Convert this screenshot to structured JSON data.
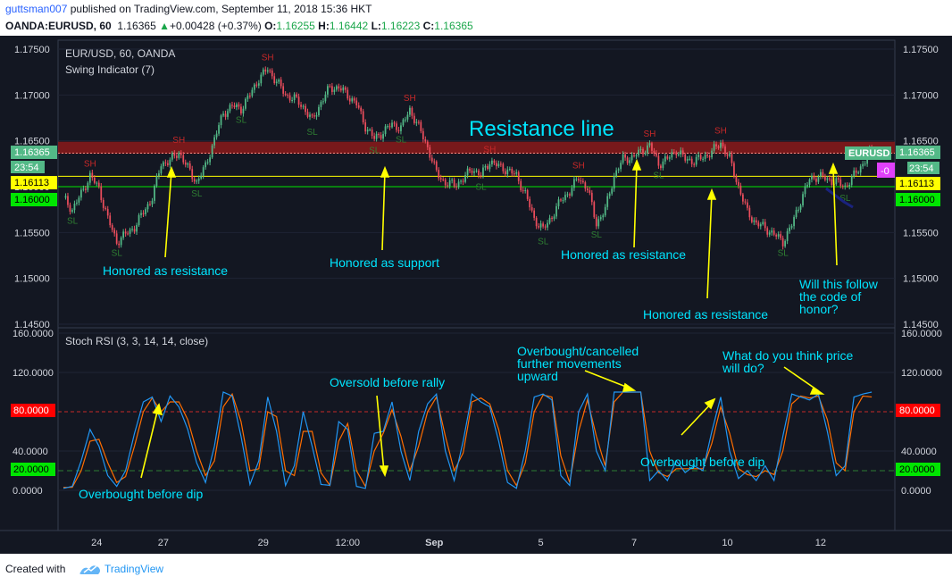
{
  "header": {
    "author": "guttsman007",
    "published_text": " published on TradingView.com, September 11, 2018 15:36 HKT",
    "symbol": "OANDA:EURUSD, 60",
    "last": "1.16365",
    "change_arrow": "▲",
    "change": "+0.00428 (+0.37%)",
    "o_label": "O:",
    "o_value": "1.16255",
    "h_label": "H:",
    "h_value": "1.16442",
    "l_label": "L:",
    "l_value": "1.16223",
    "c_label": "C:",
    "c_value": "1.16365"
  },
  "footer": {
    "created_with": "Created with",
    "brand": "TradingView"
  },
  "colors": {
    "bg": "#131722",
    "up": "#53b987",
    "down": "#eb4d5c",
    "resistance": "#8b1a1a",
    "annotation": "#00e5ff",
    "arrow": "#ffff00",
    "k_line": "#2196f3",
    "d_line": "#ff6d00"
  },
  "chart_data": [
    {
      "type": "candlestick",
      "title": "EUR/USD, 60, OANDA",
      "indicator": "Swing Indicator (7)",
      "y_ticks": [
        "1.17500",
        "1.17000",
        "1.16500",
        "1.16000",
        "1.15500",
        "1.15000",
        "1.14500"
      ],
      "ylim": [
        1.1443,
        1.1768
      ],
      "x_ticks": [
        "24",
        "27",
        "29",
        "12:00",
        "Sep",
        "5",
        "7",
        "10",
        "12"
      ],
      "price_labels": {
        "last": "1.16365",
        "countdown": "23:54",
        "support_yellow": "1.16113",
        "support_green": "1.16000",
        "symbol_badge": "EURUSD",
        "small_badge": "-0"
      },
      "resistance_zone": [
        1.1636,
        1.1649
      ],
      "horizontal_lines": [
        1.16113,
        1.16
      ],
      "close_path": [
        [
          0,
          1.1588
        ],
        [
          4,
          1.1575
        ],
        [
          8,
          1.1592
        ],
        [
          12,
          1.1612
        ],
        [
          16,
          1.1598
        ],
        [
          20,
          1.1565
        ],
        [
          24,
          1.154
        ],
        [
          28,
          1.1548
        ],
        [
          32,
          1.1556
        ],
        [
          36,
          1.1572
        ],
        [
          40,
          1.1588
        ],
        [
          44,
          1.1625
        ],
        [
          48,
          1.1628
        ],
        [
          52,
          1.1638
        ],
        [
          56,
          1.162
        ],
        [
          60,
          1.1605
        ],
        [
          64,
          1.1622
        ],
        [
          68,
          1.1652
        ],
        [
          72,
          1.168
        ],
        [
          76,
          1.1688
        ],
        [
          80,
          1.1685
        ],
        [
          84,
          1.17
        ],
        [
          88,
          1.1718
        ],
        [
          92,
          1.1728
        ],
        [
          96,
          1.1715
        ],
        [
          100,
          1.17
        ],
        [
          104,
          1.1696
        ],
        [
          108,
          1.1687
        ],
        [
          112,
          1.1672
        ],
        [
          116,
          1.1692
        ],
        [
          120,
          1.1708
        ],
        [
          124,
          1.1708
        ],
        [
          128,
          1.17
        ],
        [
          132,
          1.169
        ],
        [
          136,
          1.1666
        ],
        [
          140,
          1.1652
        ],
        [
          144,
          1.166
        ],
        [
          148,
          1.1668
        ],
        [
          152,
          1.1664
        ],
        [
          156,
          1.1684
        ],
        [
          160,
          1.1665
        ],
        [
          164,
          1.1643
        ],
        [
          168,
          1.1615
        ],
        [
          172,
          1.1604
        ],
        [
          176,
          1.1602
        ],
        [
          180,
          1.1608
        ],
        [
          184,
          1.162
        ],
        [
          188,
          1.1612
        ],
        [
          192,
          1.1628
        ],
        [
          196,
          1.1622
        ],
        [
          200,
          1.1618
        ],
        [
          204,
          1.1612
        ],
        [
          208,
          1.1592
        ],
        [
          212,
          1.1565
        ],
        [
          216,
          1.1553
        ],
        [
          220,
          1.1568
        ],
        [
          224,
          1.1585
        ],
        [
          228,
          1.1595
        ],
        [
          232,
          1.161
        ],
        [
          236,
          1.1598
        ],
        [
          240,
          1.156
        ],
        [
          244,
          1.1575
        ],
        [
          248,
          1.1612
        ],
        [
          252,
          1.163
        ],
        [
          256,
          1.1632
        ],
        [
          260,
          1.1638
        ],
        [
          264,
          1.1645
        ],
        [
          268,
          1.1625
        ],
        [
          272,
          1.163
        ],
        [
          276,
          1.164
        ],
        [
          280,
          1.163
        ],
        [
          284,
          1.1628
        ],
        [
          288,
          1.1632
        ],
        [
          292,
          1.1638
        ],
        [
          296,
          1.1648
        ],
        [
          300,
          1.163
        ],
        [
          304,
          1.16
        ],
        [
          308,
          1.1572
        ],
        [
          312,
          1.156
        ],
        [
          316,
          1.1555
        ],
        [
          320,
          1.1548
        ],
        [
          324,
          1.154
        ],
        [
          328,
          1.1558
        ],
        [
          332,
          1.1585
        ],
        [
          336,
          1.1608
        ],
        [
          340,
          1.1612
        ],
        [
          344,
          1.1608
        ],
        [
          348,
          1.1605
        ],
        [
          352,
          1.16
        ],
        [
          356,
          1.1612
        ],
        [
          360,
          1.1625
        ],
        [
          364,
          1.164
        ]
      ]
    },
    {
      "type": "line",
      "title": "Stoch RSI (3, 3, 14, 14, close)",
      "y_ticks": [
        "160.0000",
        "120.0000",
        "80.0000",
        "40.0000",
        "20.0000",
        "0.0000"
      ],
      "ylim": [
        -35,
        162
      ],
      "levels": {
        "upper": "80.0000",
        "lower": "20.0000"
      },
      "series": [
        {
          "values": [
            [
              0,
              2
            ],
            [
              4,
              4
            ],
            [
              8,
              30
            ],
            [
              12,
              62
            ],
            [
              16,
              45
            ],
            [
              20,
              15
            ],
            [
              24,
              4
            ],
            [
              28,
              20
            ],
            [
              32,
              58
            ],
            [
              36,
              90
            ],
            [
              40,
              95
            ],
            [
              44,
              70
            ],
            [
              48,
              96
            ],
            [
              52,
              85
            ],
            [
              56,
              62
            ],
            [
              60,
              28
            ],
            [
              64,
              8
            ],
            [
              68,
              45
            ],
            [
              72,
              100
            ],
            [
              76,
              96
            ],
            [
              80,
              55
            ],
            [
              84,
              6
            ],
            [
              88,
              30
            ],
            [
              92,
              95
            ],
            [
              96,
              60
            ],
            [
              100,
              5
            ],
            [
              104,
              25
            ],
            [
              108,
              80
            ],
            [
              112,
              45
            ],
            [
              116,
              6
            ],
            [
              120,
              5
            ],
            [
              124,
              70
            ],
            [
              128,
              62
            ],
            [
              132,
              4
            ],
            [
              136,
              2
            ],
            [
              140,
              58
            ],
            [
              144,
              60
            ],
            [
              148,
              90
            ],
            [
              152,
              40
            ],
            [
              156,
              10
            ],
            [
              160,
              60
            ],
            [
              164,
              88
            ],
            [
              168,
              98
            ],
            [
              172,
              40
            ],
            [
              176,
              10
            ],
            [
              180,
              50
            ],
            [
              184,
              98
            ],
            [
              188,
              90
            ],
            [
              192,
              85
            ],
            [
              196,
              50
            ],
            [
              200,
              8
            ],
            [
              204,
              2
            ],
            [
              208,
              40
            ],
            [
              212,
              95
            ],
            [
              216,
              98
            ],
            [
              220,
              92
            ],
            [
              224,
              15
            ],
            [
              228,
              5
            ],
            [
              232,
              80
            ],
            [
              236,
              98
            ],
            [
              240,
              40
            ],
            [
              244,
              20
            ],
            [
              248,
              100
            ],
            [
              252,
              100
            ],
            [
              256,
              100
            ],
            [
              260,
              100
            ],
            [
              264,
              10
            ],
            [
              268,
              20
            ],
            [
              272,
              10
            ],
            [
              276,
              30
            ],
            [
              280,
              18
            ],
            [
              284,
              25
            ],
            [
              288,
              20
            ],
            [
              292,
              60
            ],
            [
              296,
              95
            ],
            [
              300,
              40
            ],
            [
              304,
              12
            ],
            [
              308,
              20
            ],
            [
              312,
              10
            ],
            [
              316,
              25
            ],
            [
              320,
              10
            ],
            [
              324,
              55
            ],
            [
              328,
              98
            ],
            [
              332,
              95
            ],
            [
              336,
              92
            ],
            [
              340,
              98
            ],
            [
              344,
              60
            ],
            [
              348,
              15
            ],
            [
              352,
              25
            ],
            [
              356,
              95
            ],
            [
              360,
              98
            ],
            [
              364,
              100
            ]
          ]
        },
        {
          "values": [
            [
              0,
              3
            ],
            [
              4,
              3
            ],
            [
              8,
              20
            ],
            [
              12,
              50
            ],
            [
              16,
              52
            ],
            [
              20,
              28
            ],
            [
              24,
              8
            ],
            [
              28,
              14
            ],
            [
              32,
              45
            ],
            [
              36,
              80
            ],
            [
              40,
              94
            ],
            [
              44,
              80
            ],
            [
              48,
              90
            ],
            [
              52,
              90
            ],
            [
              56,
              72
            ],
            [
              60,
              40
            ],
            [
              64,
              15
            ],
            [
              68,
              30
            ],
            [
              72,
              85
            ],
            [
              76,
              98
            ],
            [
              80,
              70
            ],
            [
              84,
              20
            ],
            [
              88,
              22
            ],
            [
              92,
              80
            ],
            [
              96,
              75
            ],
            [
              100,
              20
            ],
            [
              104,
              15
            ],
            [
              108,
              60
            ],
            [
              112,
              60
            ],
            [
              116,
              18
            ],
            [
              120,
              5
            ],
            [
              124,
              50
            ],
            [
              128,
              68
            ],
            [
              132,
              20
            ],
            [
              136,
              4
            ],
            [
              140,
              40
            ],
            [
              144,
              58
            ],
            [
              148,
              82
            ],
            [
              152,
              55
            ],
            [
              156,
              20
            ],
            [
              160,
              45
            ],
            [
              164,
              80
            ],
            [
              168,
              95
            ],
            [
              172,
              55
            ],
            [
              176,
              20
            ],
            [
              180,
              38
            ],
            [
              184,
              90
            ],
            [
              188,
              94
            ],
            [
              192,
              88
            ],
            [
              196,
              62
            ],
            [
              200,
              20
            ],
            [
              204,
              5
            ],
            [
              208,
              28
            ],
            [
              212,
              80
            ],
            [
              216,
              97
            ],
            [
              220,
              95
            ],
            [
              224,
              35
            ],
            [
              228,
              8
            ],
            [
              232,
              60
            ],
            [
              236,
              92
            ],
            [
              240,
              55
            ],
            [
              244,
              25
            ],
            [
              248,
              90
            ],
            [
              252,
              100
            ],
            [
              256,
              100
            ],
            [
              260,
              100
            ],
            [
              264,
              40
            ],
            [
              268,
              18
            ],
            [
              272,
              14
            ],
            [
              276,
              22
            ],
            [
              280,
              22
            ],
            [
              284,
              22
            ],
            [
              288,
              22
            ],
            [
              292,
              48
            ],
            [
              296,
              85
            ],
            [
              300,
              58
            ],
            [
              304,
              22
            ],
            [
              308,
              16
            ],
            [
              312,
              14
            ],
            [
              316,
              20
            ],
            [
              320,
              16
            ],
            [
              324,
              40
            ],
            [
              328,
              88
            ],
            [
              332,
              96
            ],
            [
              336,
              94
            ],
            [
              340,
              96
            ],
            [
              344,
              72
            ],
            [
              348,
              28
            ],
            [
              352,
              20
            ],
            [
              356,
              80
            ],
            [
              360,
              96
            ],
            [
              364,
              95
            ]
          ]
        }
      ]
    }
  ],
  "annotations": {
    "resistance_line": "Resistance line",
    "honored_resistance_1": "Honored as resistance",
    "honored_support": "Honored as support",
    "honored_resistance_2": "Honored as resistance",
    "honored_resistance_3": "Honored as resistance",
    "will_follow": [
      "Will this follow",
      "the code of",
      "honor?"
    ],
    "overbought_before_dip_1": "Overbought before dip",
    "oversold_before_rally": "Oversold before rally",
    "overbought_cancelled": [
      "Overbought/cancelled",
      "further movements",
      "upward"
    ],
    "overbought_before_dip_2": "Overbought before dip",
    "what_price": [
      "What do you think price",
      "will do?"
    ]
  },
  "swing_labels": {
    "sh": "SH",
    "sl": "SL"
  }
}
